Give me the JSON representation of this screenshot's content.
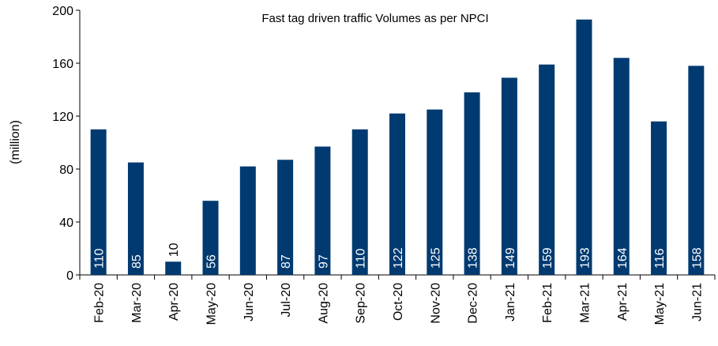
{
  "chart_data": {
    "type": "bar",
    "title": "Fast tag  driven  traffic Volumes as per NPCI",
    "y_label": "(million)",
    "categories": [
      "Feb-20",
      "Mar-20",
      "Apr-20",
      "May-20",
      "Jun-20",
      "Jul-20",
      "Aug-20",
      "Sep-20",
      "Oct-20",
      "Nov-20",
      "Dec-20",
      "Jan-21",
      "Feb-21",
      "Mar-21",
      "Apr-21",
      "May-21",
      "Jun-21"
    ],
    "values": [
      110,
      85,
      10,
      56,
      82,
      87,
      97,
      110,
      122,
      125,
      138,
      149,
      159,
      193,
      164,
      116,
      158
    ],
    "value_labels": [
      "110",
      "85",
      "10",
      "56",
      null,
      "87",
      "97",
      "110",
      "122",
      "125",
      "138",
      "149",
      "159",
      "193",
      "164",
      "116",
      "158"
    ],
    "color": "#003a70",
    "ylim": [
      0,
      200
    ],
    "yticks": [
      0,
      40,
      80,
      120,
      160,
      200
    ],
    "grid": false
  }
}
